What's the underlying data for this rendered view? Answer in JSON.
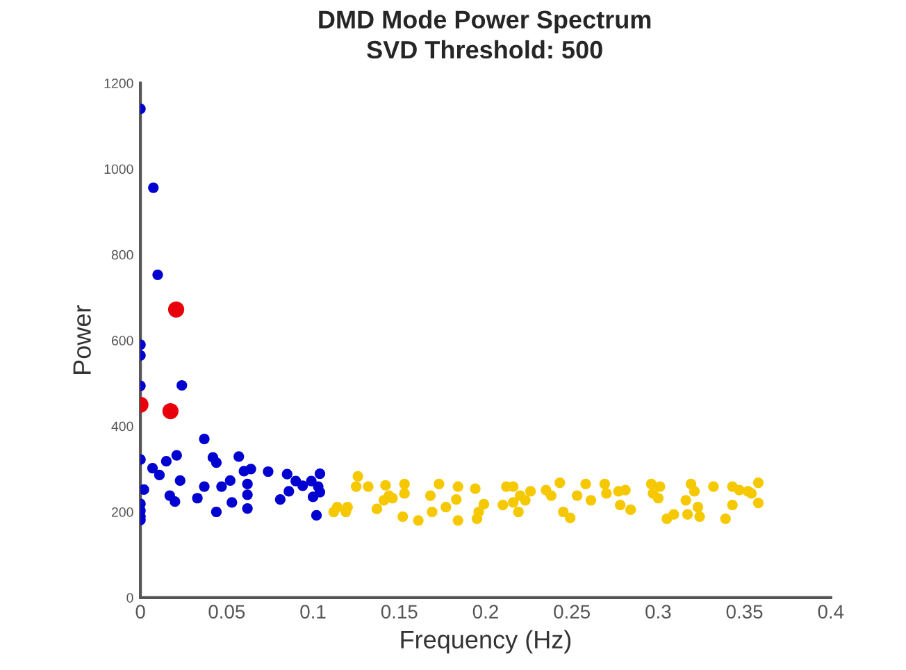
{
  "chart_data": {
    "type": "scatter",
    "title": "DMD Mode Power Spectrum",
    "subtitle": "SVD Threshold: 500",
    "xlabel": "Frequency (Hz)",
    "ylabel": "Power",
    "xlim": [
      0,
      0.4
    ],
    "ylim": [
      0,
      1200
    ],
    "xticks": [
      0,
      0.05,
      0.1,
      0.15,
      0.2,
      0.25,
      0.3,
      0.35,
      0.4
    ],
    "yticks": [
      0,
      200,
      400,
      600,
      800,
      1000,
      1200
    ],
    "grid": false,
    "marker": "circle",
    "series": [
      {
        "color": "#0000d0",
        "x": [
          0,
          0.0075,
          0.01,
          0,
          0,
          0,
          0.024,
          0,
          0.002,
          0,
          0,
          0,
          0,
          0.007,
          0.011,
          0.015,
          0.021,
          0.023,
          0.017,
          0.02,
          0.033,
          0.037,
          0.037,
          0.042,
          0.044,
          0.044,
          0.047,
          0.052,
          0.053,
          0.057,
          0.06,
          0.064,
          0.062,
          0.062,
          0.062,
          0.074,
          0.081,
          0.085,
          0.086,
          0.09,
          0.094,
          0.099,
          0.1,
          0.102,
          0.103,
          0.104,
          0.104
        ],
        "values": [
          1140,
          956,
          753,
          590,
          565,
          494,
          495,
          322,
          252,
          219,
          203,
          189,
          181,
          302,
          286,
          318,
          332,
          273,
          238,
          224,
          232,
          259,
          370,
          327,
          315,
          200,
          259,
          273,
          222,
          329,
          295,
          300,
          265,
          240,
          208,
          294,
          229,
          288,
          248,
          272,
          261,
          272,
          235,
          192,
          259,
          289,
          246
        ]
      },
      {
        "color": "#f5c800",
        "x": [
          0.112,
          0.114,
          0.119,
          0.12,
          0.125,
          0.126,
          0.132,
          0.142,
          0.144,
          0.141,
          0.137,
          0.146,
          0.153,
          0.153,
          0.152,
          0.161,
          0.168,
          0.169,
          0.173,
          0.177,
          0.183,
          0.184,
          0.184,
          0.194,
          0.199,
          0.196,
          0.195,
          0.21,
          0.212,
          0.216,
          0.216,
          0.219,
          0.223,
          0.226,
          0.22,
          0.235,
          0.238,
          0.243,
          0.245,
          0.249,
          0.253,
          0.258,
          0.261,
          0.269,
          0.27,
          0.277,
          0.281,
          0.278,
          0.284,
          0.296,
          0.297,
          0.3,
          0.301,
          0.305,
          0.309,
          0.316,
          0.317,
          0.319,
          0.321,
          0.323,
          0.324,
          0.332,
          0.339,
          0.343,
          0.343,
          0.347,
          0.352,
          0.354,
          0.358,
          0.358
        ],
        "values": [
          200,
          211,
          200,
          211,
          259,
          283,
          259,
          262,
          238,
          227,
          207,
          232,
          265,
          243,
          189,
          180,
          238,
          200,
          265,
          211,
          229,
          259,
          180,
          254,
          218,
          200,
          184,
          216,
          259,
          259,
          222,
          200,
          227,
          248,
          238,
          251,
          238,
          268,
          200,
          186,
          238,
          265,
          227,
          265,
          243,
          248,
          251,
          216,
          205,
          265,
          243,
          232,
          259,
          184,
          194,
          227,
          194,
          265,
          248,
          211,
          189,
          259,
          184,
          259,
          216,
          251,
          248,
          243,
          268,
          221
        ]
      },
      {
        "color": "#e8000b",
        "x": [
          0.0207,
          0,
          0.0174
        ],
        "values": [
          672,
          450,
          435
        ]
      }
    ]
  }
}
